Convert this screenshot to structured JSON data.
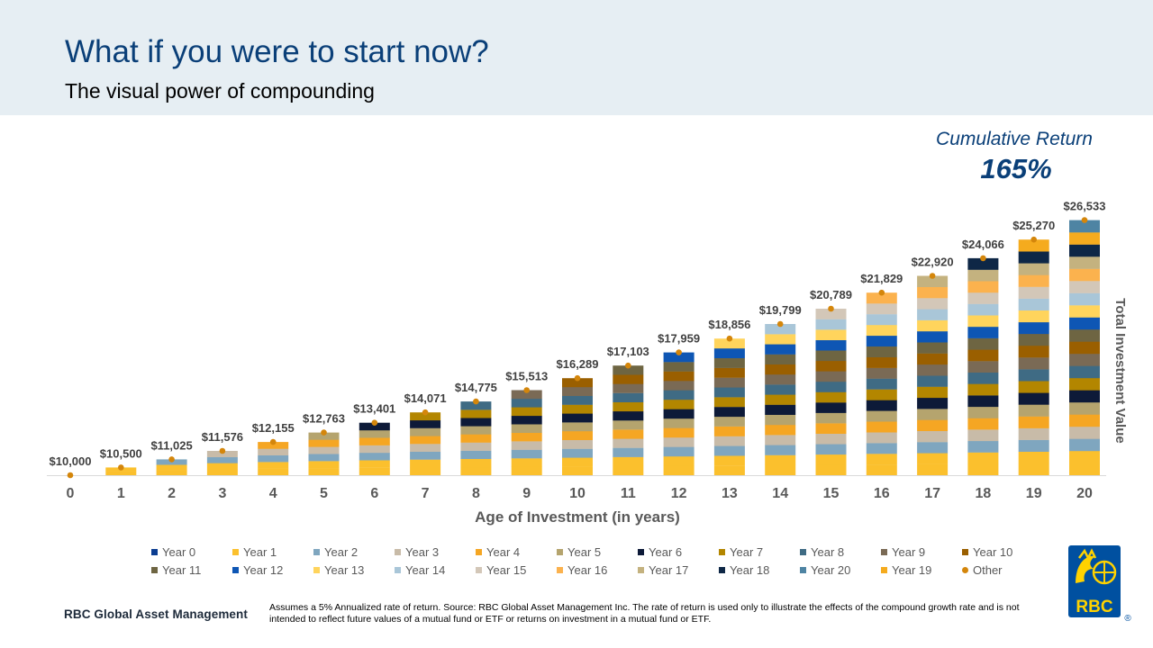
{
  "header": {
    "title": "What if you were to start now?",
    "subtitle": "The visual power of compounding"
  },
  "cumulative": {
    "label": "Cumulative Return",
    "value": "165%"
  },
  "chart_data": {
    "type": "bar",
    "stacked": true,
    "xlabel": "Age of Investment (in years)",
    "ylabel": "Total Investment Value",
    "categories": [
      "0",
      "1",
      "2",
      "3",
      "4",
      "5",
      "6",
      "7",
      "8",
      "9",
      "10",
      "11",
      "12",
      "13",
      "14",
      "15",
      "16",
      "17",
      "18",
      "19",
      "20"
    ],
    "totals": [
      10000,
      10500,
      11025,
      11576,
      12155,
      12763,
      13401,
      14071,
      14775,
      15513,
      16289,
      17103,
      17959,
      18856,
      19799,
      20789,
      21829,
      22920,
      24066,
      25270,
      26533
    ],
    "total_labels": [
      "$10,000",
      "$10,500",
      "$11,025",
      "$11,576",
      "$12,155",
      "$12,763",
      "$13,401",
      "$14,071",
      "$14,775",
      "$15,513",
      "$16,289",
      "$17,103",
      "$17,959",
      "$18,856",
      "$19,799",
      "$20,789",
      "$21,829",
      "$22,920",
      "$24,066",
      "$25,270",
      "$26,533"
    ],
    "base_value": 10000,
    "growth_rate": 0.05,
    "series_colors": [
      "#0b3d91",
      "#fbc02d",
      "#7fa6bf",
      "#c8bba8",
      "#f5a623",
      "#b5a46e",
      "#0d1a38",
      "#b38600",
      "#3f6b84",
      "#7a6a55",
      "#9a5f00",
      "#6e6542",
      "#0e56b4",
      "#ffd45c",
      "#a9c6d8",
      "#d3c7b8",
      "#fbb24e",
      "#c4b27f",
      "#0e2746",
      "#f5ab1e",
      "#4e84a3"
    ],
    "other_color": "#d4860b",
    "ylim": [
      10000,
      27500
    ],
    "legend": {
      "row1": [
        {
          "label": "Year 0",
          "color": "#0b3d91"
        },
        {
          "label": "Year 1",
          "color": "#fbc02d"
        },
        {
          "label": "Year 2",
          "color": "#7fa6bf"
        },
        {
          "label": " Year 3",
          "color": "#c8bba8"
        },
        {
          "label": "Year 4",
          "color": "#f5a623"
        },
        {
          "label": "Year 5",
          "color": "#b5a46e"
        },
        {
          "label": "Year 6",
          "color": "#0d1a38"
        },
        {
          "label": "Year 7",
          "color": "#b38600"
        },
        {
          "label": "Year 8",
          "color": "#3f6b84"
        },
        {
          "label": "Year 9",
          "color": "#7a6a55"
        },
        {
          "label": "Year 10",
          "color": "#9a5f00"
        }
      ],
      "row2": [
        {
          "label": "Year 11",
          "color": "#6e6542"
        },
        {
          "label": "Year 12",
          "color": "#0e56b4"
        },
        {
          "label": "Year 13",
          "color": "#ffd45c"
        },
        {
          "label": "Year 14",
          "color": "#a9c6d8"
        },
        {
          "label": "Year 15",
          "color": "#d3c7b8"
        },
        {
          "label": "Year 16",
          "color": "#fbb24e"
        },
        {
          "label": "Year 17",
          "color": "#c4b27f"
        },
        {
          "label": "Year 18",
          "color": "#0e2746"
        },
        {
          "label": "Year 20",
          "color": "#4e84a3"
        },
        {
          "label": "Year 19",
          "color": "#f5ab1e"
        },
        {
          "label": "Other",
          "color": "#d4860b",
          "marker": "dot"
        }
      ]
    }
  },
  "footnote": "Assumes a 5% Annualized rate of return. Source: RBC Global Asset Management Inc. The rate of return is used only to illustrate the effects of the compound growth rate and is not intended to reflect future values of a mutual fund or ETF or returns on investment in a mutual fund or ETF.",
  "brand": {
    "text": "RBC Global Asset Management",
    "logo_text": "RBC",
    "logo_mark": "®"
  },
  "colors": {
    "title_blue": "#0a3f78",
    "header_band": "#e6eef3",
    "logo_blue": "#0050a0",
    "logo_yellow": "#ffd200"
  }
}
